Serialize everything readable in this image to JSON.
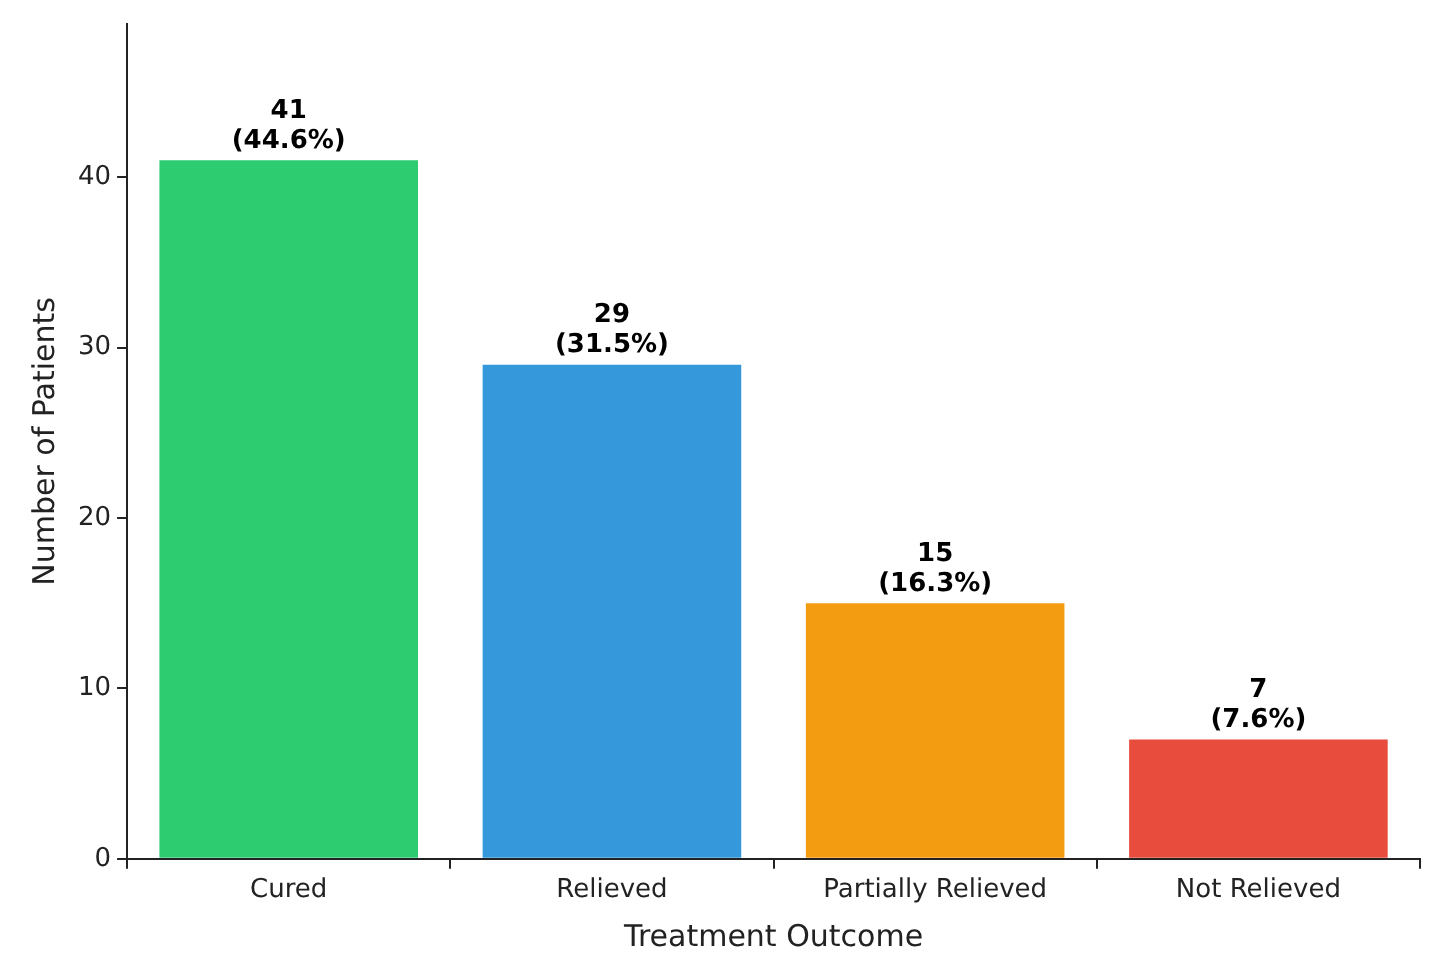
{
  "chart_data": {
    "type": "bar",
    "xlabel": "Treatment Outcome",
    "ylabel": "Number of Patients",
    "categories": [
      "Cured",
      "Relieved",
      "Partially Relieved",
      "Not Relieved"
    ],
    "values": [
      41,
      29,
      15,
      7
    ],
    "colors": [
      "#2ecc71",
      "#3498db",
      "#f39c12",
      "#e74c3c"
    ],
    "value_labels": [
      "41\n(44.6%)",
      "29\n(31.5%)",
      "15\n(16.3%)",
      "7\n(7.6%)"
    ],
    "ylim": [
      0,
      49
    ],
    "yticks": [
      0,
      10,
      20,
      30,
      40
    ],
    "grid": false,
    "legend": false
  }
}
